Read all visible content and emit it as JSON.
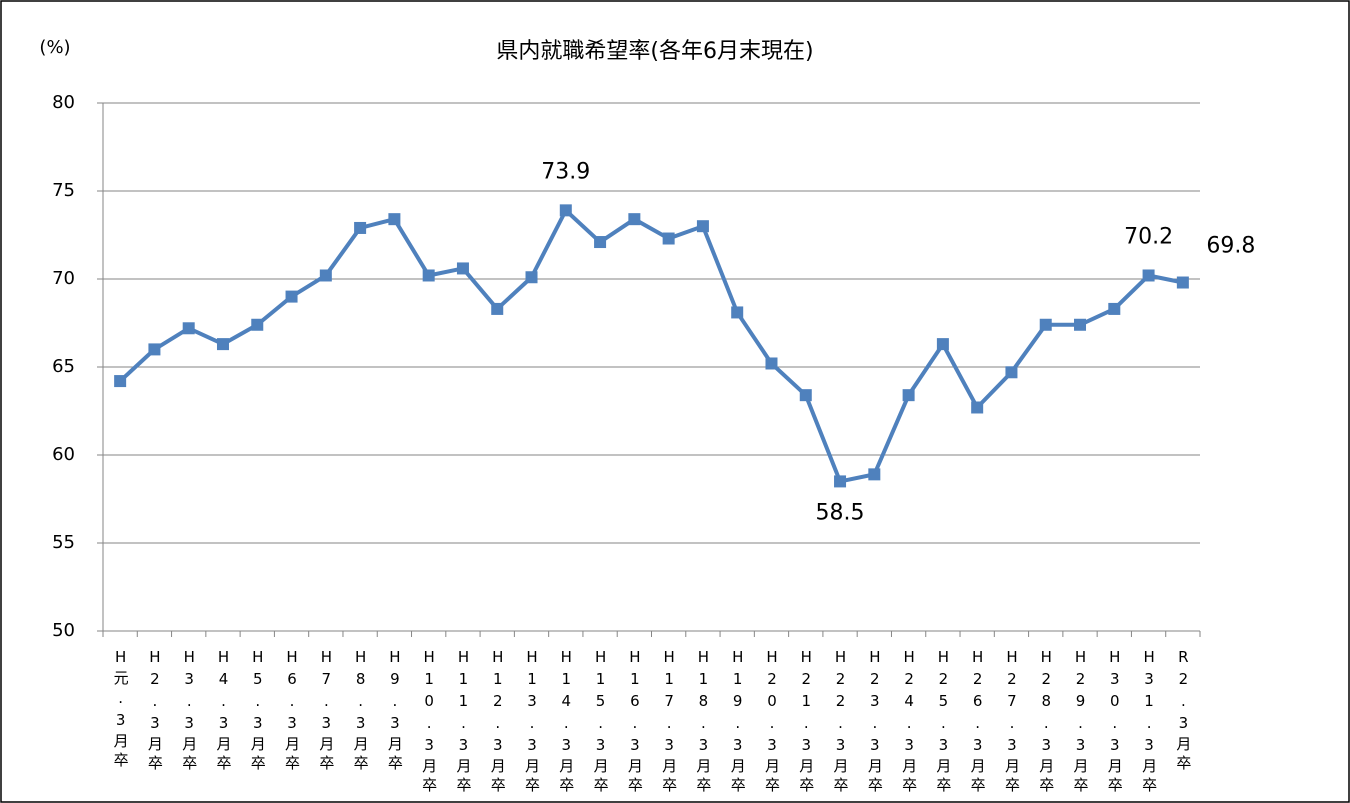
{
  "chart_data": {
    "type": "line",
    "title": "県内就職希望率(各年6月末現在)",
    "y_label": "(%)",
    "categories": [
      "H元.3月卒",
      "H2.3月卒",
      "H3.3月卒",
      "H4.3月卒",
      "H5.3月卒",
      "H6.3月卒",
      "H7.3月卒",
      "H8.3月卒",
      "H9.3月卒",
      "H10.3月卒",
      "H11.3月卒",
      "H12.3月卒",
      "H13.3月卒",
      "H14.3月卒",
      "H15.3月卒",
      "H16.3月卒",
      "H17.3月卒",
      "H18.3月卒",
      "H19.3月卒",
      "H20.3月卒",
      "H21.3月卒",
      "H22.3月卒",
      "H23.3月卒",
      "H24.3月卒",
      "H25.3月卒",
      "H26.3月卒",
      "H27.3月卒",
      "H28.3月卒",
      "H29.3月卒",
      "H30.3月卒",
      "H31.3月卒",
      "R2.3月卒"
    ],
    "values": [
      64.2,
      66.0,
      67.2,
      66.3,
      67.4,
      69.0,
      70.2,
      72.9,
      73.4,
      70.2,
      70.6,
      68.3,
      70.1,
      73.9,
      72.1,
      73.4,
      72.3,
      73.0,
      68.1,
      65.2,
      63.4,
      58.5,
      58.9,
      63.4,
      66.3,
      62.7,
      64.7,
      67.4,
      67.4,
      68.3,
      70.2,
      69.8
    ],
    "value_labels": [
      null,
      null,
      null,
      null,
      null,
      null,
      null,
      null,
      null,
      null,
      null,
      null,
      null,
      "73.9",
      null,
      null,
      null,
      null,
      null,
      null,
      null,
      "58.5",
      null,
      null,
      null,
      null,
      null,
      null,
      null,
      null,
      "70.2",
      "69.8"
    ],
    "color": "#4f81bd",
    "ylim": [
      50,
      80
    ],
    "yticks": [
      50,
      55,
      60,
      65,
      70,
      75,
      80
    ],
    "grid": true
  }
}
